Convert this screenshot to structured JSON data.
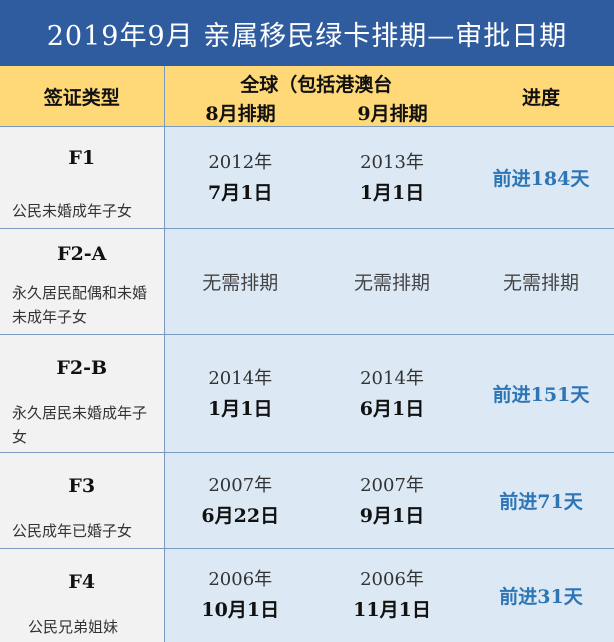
{
  "title": "2019年9月  亲属移民绿卡排期—审批日期",
  "header": {
    "type_col": "签证类型",
    "global_col": "全球（包括港澳台",
    "aug_col": "8月排期",
    "sep_col": "9月排期",
    "progress_col": "进度"
  },
  "rows": [
    {
      "code": "F1",
      "desc": "公民未婚成年子女",
      "aug_year": "2012年",
      "aug_date": "7月1日",
      "sep_year": "2013年",
      "sep_date": "1月1日",
      "progress": "前进184天"
    },
    {
      "code": "F2-A",
      "desc": "永久居民配偶和未婚未成年子女",
      "aug_plain": "无需排期",
      "sep_plain": "无需排期",
      "progress_plain": "无需排期"
    },
    {
      "code": "F2-B",
      "desc": "永久居民未婚成年子女",
      "aug_year": "2014年",
      "aug_date": "1月1日",
      "sep_year": "2014年",
      "sep_date": "6月1日",
      "progress": "前进151天"
    },
    {
      "code": "F3",
      "desc": "公民成年已婚子女",
      "aug_year": "2007年",
      "aug_date": "6月22日",
      "sep_year": "2007年",
      "sep_date": "9月1日",
      "progress": "前进71天"
    },
    {
      "code": "F4",
      "desc": "公民兄弟姐妹",
      "aug_year": "2006年",
      "aug_date": "10月1日",
      "sep_year": "2006年",
      "sep_date": "11月1日",
      "progress": "前进31天"
    }
  ]
}
